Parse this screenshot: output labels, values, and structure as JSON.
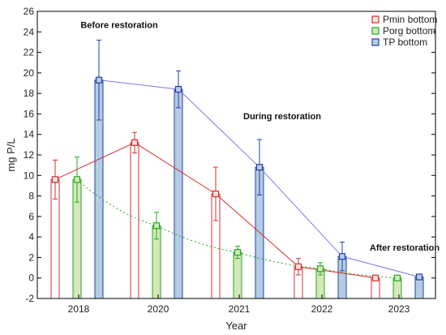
{
  "chart_data": {
    "type": "bar",
    "xlabel": "Year",
    "ylabel": "mg P/L",
    "ylim": [
      -2,
      26
    ],
    "yticks": [
      -2,
      0,
      2,
      4,
      6,
      8,
      10,
      12,
      14,
      16,
      18,
      20,
      22,
      24,
      26
    ],
    "categories": [
      "2018",
      "2020",
      "2021",
      "2022",
      "2023"
    ],
    "grid": false,
    "legend_position": "top-right",
    "series": [
      {
        "name": "Pmin bottom",
        "color": "#d32f2f",
        "fill": "none",
        "values": [
          9.6,
          13.2,
          8.2,
          1.1,
          0.0
        ],
        "error": [
          1.9,
          1.0,
          2.6,
          0.8,
          0.0
        ],
        "line": "solid"
      },
      {
        "name": "Porg bottom",
        "color": "#22aa22",
        "fill": "#d5e8b8",
        "values": [
          9.6,
          5.1,
          2.5,
          0.9,
          0.0
        ],
        "error": [
          2.2,
          1.3,
          0.6,
          0.6,
          0.0
        ],
        "line": "dotted"
      },
      {
        "name": "TP bottom",
        "color": "#2b3fa8",
        "fill": "#b3cde3",
        "values": [
          19.3,
          18.4,
          10.8,
          2.1,
          0.1
        ],
        "error": [
          3.9,
          1.8,
          2.7,
          1.4,
          0.0
        ],
        "line": "solid-light"
      }
    ],
    "annotations": [
      {
        "text": "Before restoration",
        "x_category": "2018",
        "y": 24.7
      },
      {
        "text": "During restoration",
        "x_category": "2021",
        "y": 15.8
      },
      {
        "text": "After restoration",
        "x_category": "2022",
        "y": 3.0
      }
    ]
  }
}
